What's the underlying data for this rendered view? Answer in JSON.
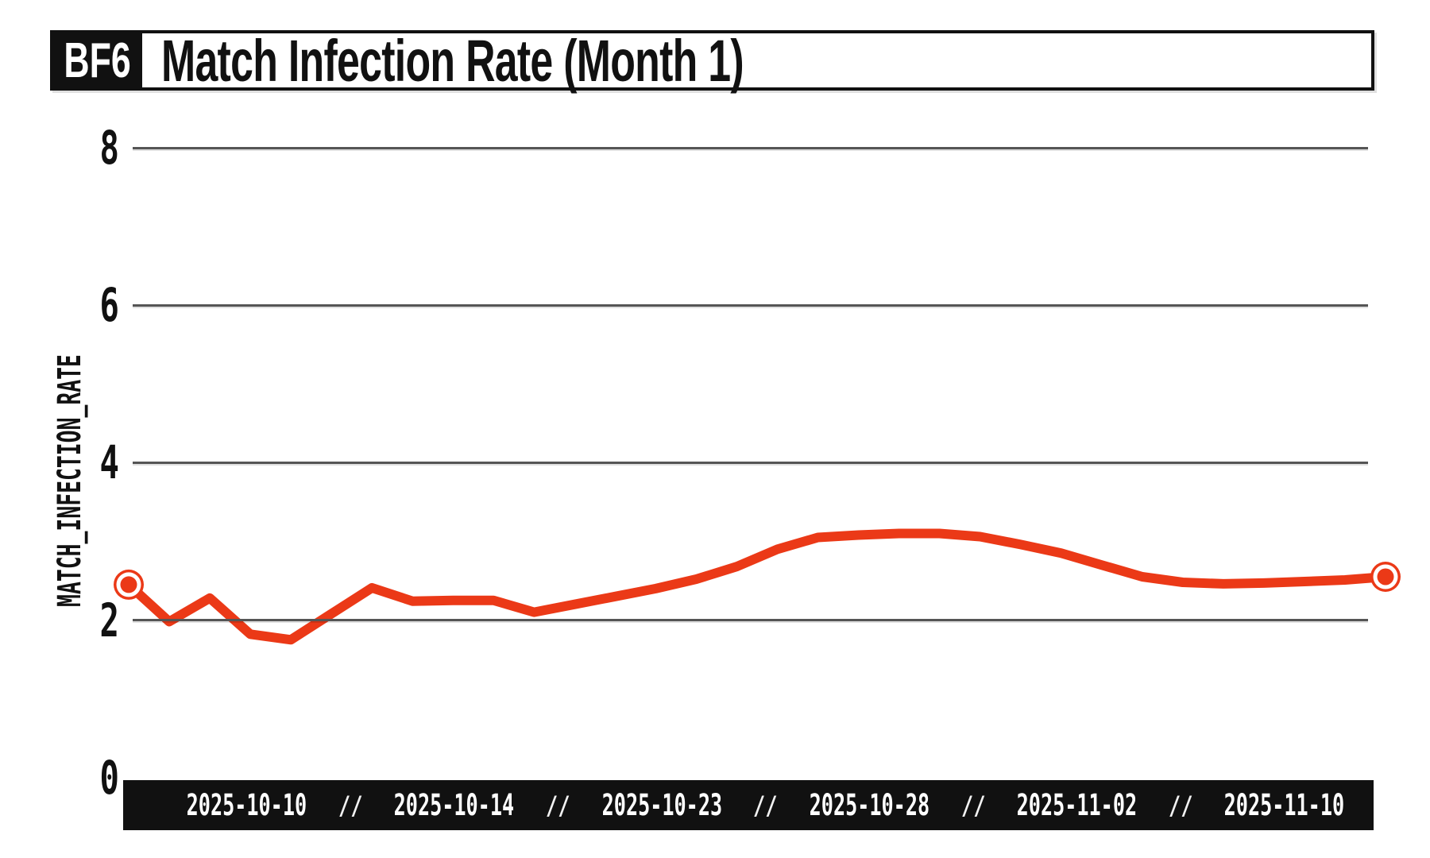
{
  "header": {
    "badge": "BF6",
    "title": "Match Infection Rate (Month 1)"
  },
  "chart_data": {
    "type": "line",
    "title": "Match Infection Rate (Month 1)",
    "ylabel": "MATCH_INFECTION_RATE",
    "xlabel": "",
    "ylim": [
      0,
      8
    ],
    "yticks": [
      0,
      2,
      4,
      6,
      8
    ],
    "grid": "horizontal gridlines at 2, 4, 6, 8",
    "legend": "none",
    "x_range": [
      "2025-10-10",
      "2025-11-10"
    ],
    "x_tick_labels": [
      "2025-10-10",
      "2025-10-14",
      "2025-10-23",
      "2025-10-28",
      "2025-11-02",
      "2025-11-10"
    ],
    "x_tick_separator": "//",
    "x_tick_day_indices": [
      0,
      4,
      13,
      18,
      23,
      31
    ],
    "series": [
      {
        "name": "match_infection_rate",
        "values": [
          2.45,
          1.98,
          2.28,
          1.82,
          1.75,
          2.08,
          2.41,
          2.24,
          2.25,
          2.25,
          2.1,
          2.2,
          2.3,
          2.4,
          2.52,
          2.68,
          2.9,
          3.05,
          3.08,
          3.1,
          3.1,
          3.06,
          2.96,
          2.85,
          2.7,
          2.55,
          2.48,
          2.46,
          2.47,
          2.49,
          2.51,
          2.55
        ]
      }
    ],
    "highlight_markers": "first and last data points have ringed circle markers",
    "line_color": "#EB3917"
  },
  "colors": {
    "accent": "#EB3917",
    "ink": "#111111",
    "grid": "#555555",
    "background": "#FFFFFF",
    "axis_bar_bg": "#111111",
    "axis_bar_text": "#FFFFFF"
  }
}
